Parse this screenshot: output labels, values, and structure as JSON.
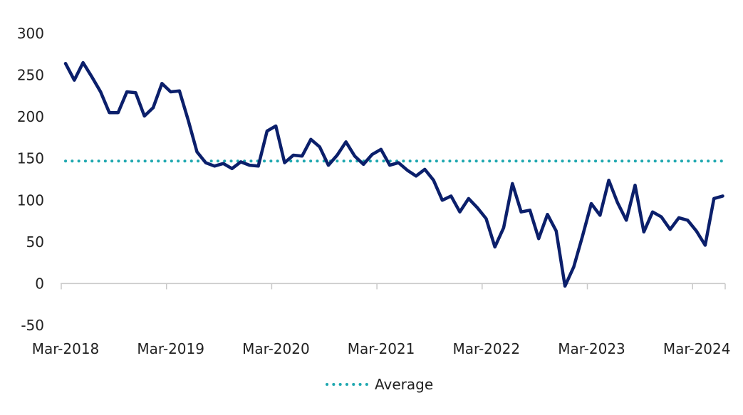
{
  "chart_data": {
    "type": "line",
    "title": "",
    "xlabel": "",
    "ylabel": "",
    "ylim": [
      -50,
      300
    ],
    "y_ticks": [
      "300",
      "250",
      "200",
      "150",
      "100",
      "50",
      "0",
      "-50"
    ],
    "x_ticks": [
      "Mar-2018",
      "Mar-2019",
      "Mar-2020",
      "Mar-2021",
      "Mar-2022",
      "Mar-2023",
      "Mar-2024"
    ],
    "grid": false,
    "legend_position": "bottom",
    "colors": {
      "series": "#0b1f6b",
      "average": "#1fa8b0",
      "axis": "#c8c8c8"
    },
    "series": [
      {
        "x_start": "Mar-2018",
        "frequency": "monthly",
        "values": [
          264,
          244,
          265,
          248,
          230,
          205,
          205,
          230,
          229,
          201,
          211,
          240,
          230,
          231,
          196,
          158,
          145,
          141,
          144,
          138,
          146,
          142,
          141,
          183,
          189,
          145,
          154,
          153,
          173,
          164,
          142,
          154,
          170,
          153,
          143,
          155,
          161,
          142,
          145,
          136,
          129,
          137,
          124,
          100,
          105,
          86,
          102,
          91,
          78,
          44,
          67,
          120,
          86,
          88,
          54,
          83,
          63,
          -3,
          20,
          57,
          96,
          82,
          124,
          97,
          76,
          118,
          62,
          86,
          80,
          65,
          79,
          76,
          63,
          46,
          102,
          105
        ]
      }
    ],
    "average": {
      "name": "Average",
      "value": 147
    },
    "legend": [
      "Average"
    ]
  }
}
